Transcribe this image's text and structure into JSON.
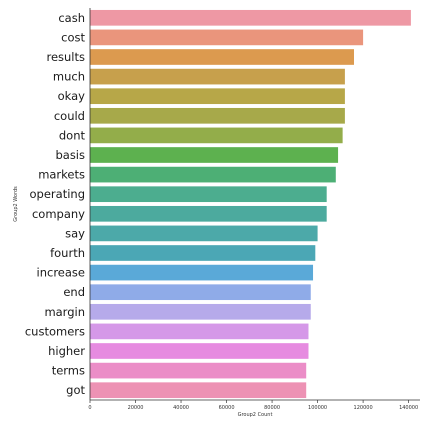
{
  "chart_data": {
    "type": "bar",
    "orientation": "horizontal",
    "xlabel": "Group2 Count",
    "ylabel": "Group2 Words",
    "xlim": [
      0,
      145000
    ],
    "xticks": [
      0,
      20000,
      40000,
      60000,
      80000,
      100000,
      120000,
      140000
    ],
    "xtick_labels": [
      "0",
      "20000",
      "40000",
      "60000",
      "80000",
      "100000",
      "120000",
      "140000"
    ],
    "grid": false,
    "categories": [
      "cash",
      "cost",
      "results",
      "much",
      "okay",
      "could",
      "dont",
      "basis",
      "markets",
      "operating",
      "company",
      "say",
      "fourth",
      "increase",
      "end",
      "margin",
      "customers",
      "higher",
      "terms",
      "got"
    ],
    "values": [
      141000,
      120000,
      116000,
      112000,
      112000,
      112000,
      111000,
      109000,
      108000,
      104000,
      104000,
      100000,
      99000,
      98000,
      97000,
      97000,
      96000,
      96000,
      95000,
      95000
    ],
    "colors": [
      "#ee98a4",
      "#ea957c",
      "#dc9a4f",
      "#c7a04c",
      "#b7a748",
      "#a7a94a",
      "#93ad4a",
      "#5db14f",
      "#4daf75",
      "#4cad8f",
      "#4caa9e",
      "#4ca9a9",
      "#4ba7b5",
      "#5aa9d8",
      "#8fabe8",
      "#b6aaea",
      "#d598e8",
      "#e68be0",
      "#eb8dc7",
      "#ed92b4"
    ]
  }
}
